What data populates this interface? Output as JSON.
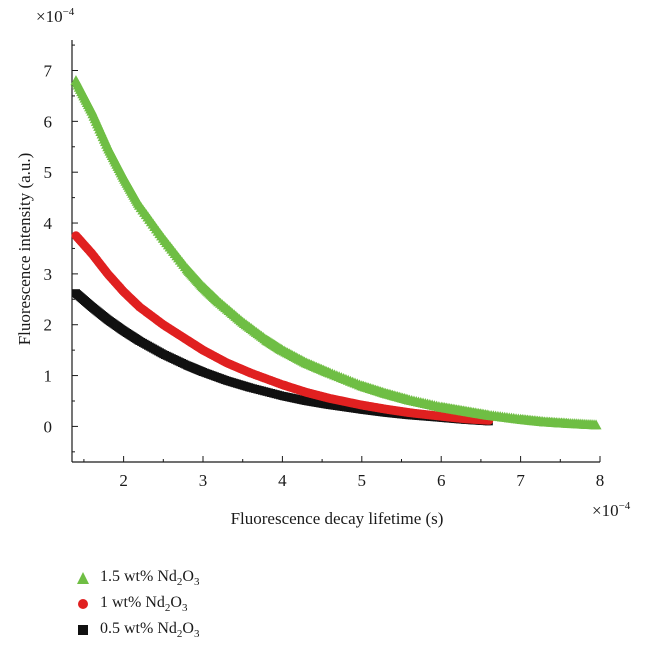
{
  "chart_data": {
    "type": "scatter",
    "x_multiplier": "×10",
    "x_exponent": "−4",
    "y_multiplier": "×10",
    "y_exponent": "−4",
    "xlabel": "Fluorescence decay lifetime (s)",
    "ylabel": "Fluorescence intensity (a.u.)",
    "xlim": [
      1.35,
      8.0
    ],
    "ylim": [
      -0.7,
      7.6
    ],
    "x_ticks": [
      2,
      3,
      4,
      5,
      6,
      7,
      8
    ],
    "y_ticks": [
      0,
      1,
      2,
      3,
      4,
      5,
      6,
      7
    ],
    "grid": false,
    "legend_position": "bottom-left",
    "series": [
      {
        "name": "1.5 wt% Nd2O3",
        "label_main": "1.5 wt% Nd",
        "label_sub1": "2",
        "label_mid": "O",
        "label_sub2": "3",
        "marker": "triangle",
        "color": "#6fbe44",
        "x": [
          1.4,
          1.6,
          1.8,
          2.0,
          2.2,
          2.5,
          2.8,
          3.0,
          3.2,
          3.5,
          3.8,
          4.0,
          4.3,
          4.6,
          5.0,
          5.3,
          5.6,
          6.0,
          6.3,
          6.6,
          7.0,
          7.3,
          7.6,
          7.95
        ],
        "y": [
          6.8,
          6.2,
          5.5,
          4.9,
          4.35,
          3.7,
          3.1,
          2.75,
          2.45,
          2.05,
          1.7,
          1.5,
          1.25,
          1.05,
          0.8,
          0.65,
          0.52,
          0.38,
          0.3,
          0.22,
          0.14,
          0.09,
          0.06,
          0.03
        ]
      },
      {
        "name": "1 wt% Nd2O3",
        "label_main": "1 wt% Nd",
        "label_sub1": "2",
        "label_mid": "O",
        "label_sub2": "3",
        "marker": "circle",
        "color": "#e02020",
        "x": [
          1.4,
          1.6,
          1.8,
          2.0,
          2.2,
          2.5,
          2.8,
          3.0,
          3.3,
          3.6,
          4.0,
          4.3,
          4.6,
          5.0,
          5.3,
          5.6,
          6.0,
          6.3,
          6.6
        ],
        "y": [
          3.75,
          3.4,
          3.0,
          2.65,
          2.35,
          2.0,
          1.7,
          1.5,
          1.25,
          1.05,
          0.82,
          0.67,
          0.55,
          0.42,
          0.34,
          0.27,
          0.2,
          0.15,
          0.12
        ]
      },
      {
        "name": "0.5 wt% Nd2O3",
        "label_main": "0.5 wt% Nd",
        "label_sub1": "2",
        "label_mid": "O",
        "label_sub2": "3",
        "marker": "square",
        "color": "#111111",
        "x": [
          1.4,
          1.6,
          1.8,
          2.0,
          2.2,
          2.5,
          2.8,
          3.0,
          3.3,
          3.6,
          4.0,
          4.3,
          4.6,
          5.0,
          5.3,
          5.6,
          6.0,
          6.3,
          6.6
        ],
        "y": [
          2.62,
          2.35,
          2.1,
          1.88,
          1.68,
          1.42,
          1.2,
          1.07,
          0.9,
          0.76,
          0.6,
          0.5,
          0.42,
          0.33,
          0.27,
          0.22,
          0.17,
          0.13,
          0.1
        ]
      }
    ]
  }
}
